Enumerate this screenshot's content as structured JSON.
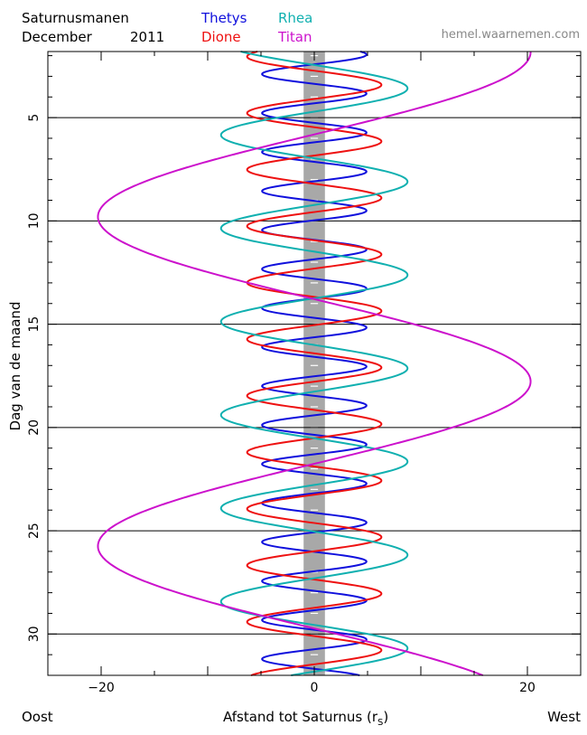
{
  "header": {
    "title": "Saturnusmanen",
    "subtitle": "December",
    "year": "2011",
    "site": "hemel.waarnemen.com"
  },
  "legend": [
    {
      "name": "Thetys",
      "color": "#1010dd"
    },
    {
      "name": "Dione",
      "color": "#ee1111"
    },
    {
      "name": "Rhea",
      "color": "#10b0b0"
    },
    {
      "name": "Titan",
      "color": "#cc11cc"
    }
  ],
  "footer": {
    "left": "Oost",
    "right": "West"
  },
  "chart_data": {
    "type": "line",
    "title": "Saturnusmanen",
    "xlabel": "Afstand tot Saturnus (r",
    "xlabel_sub": "S",
    "xlabel_close": ")",
    "ylabel": "Dag van de maand",
    "xlim": [
      -25,
      25
    ],
    "ylim": [
      1.8,
      32
    ],
    "y_inverted": true,
    "x_ticks": [
      -20,
      0,
      20
    ],
    "y_ticks": [
      5,
      10,
      15,
      20,
      25,
      30
    ],
    "gridlines_y": [
      5,
      10,
      15,
      20,
      25,
      30
    ],
    "saturn_band_halfwidth": 1.0,
    "series": [
      {
        "name": "Thetys",
        "color": "#1010dd",
        "amplitude": 4.9,
        "period_days": 1.888,
        "ref_day": 9.5,
        "phase": "max"
      },
      {
        "name": "Dione",
        "color": "#ee1111",
        "amplitude": 6.3,
        "period_days": 2.737,
        "ref_day": 6.15,
        "phase": "max"
      },
      {
        "name": "Rhea",
        "color": "#10b0b0",
        "amplitude": 8.75,
        "period_days": 4.518,
        "ref_day": 8.1,
        "phase": "max"
      },
      {
        "name": "Titan",
        "color": "#cc11cc",
        "amplitude": 20.3,
        "period_days": 15.945,
        "ref_day": 9.8,
        "phase": "min"
      }
    ]
  }
}
